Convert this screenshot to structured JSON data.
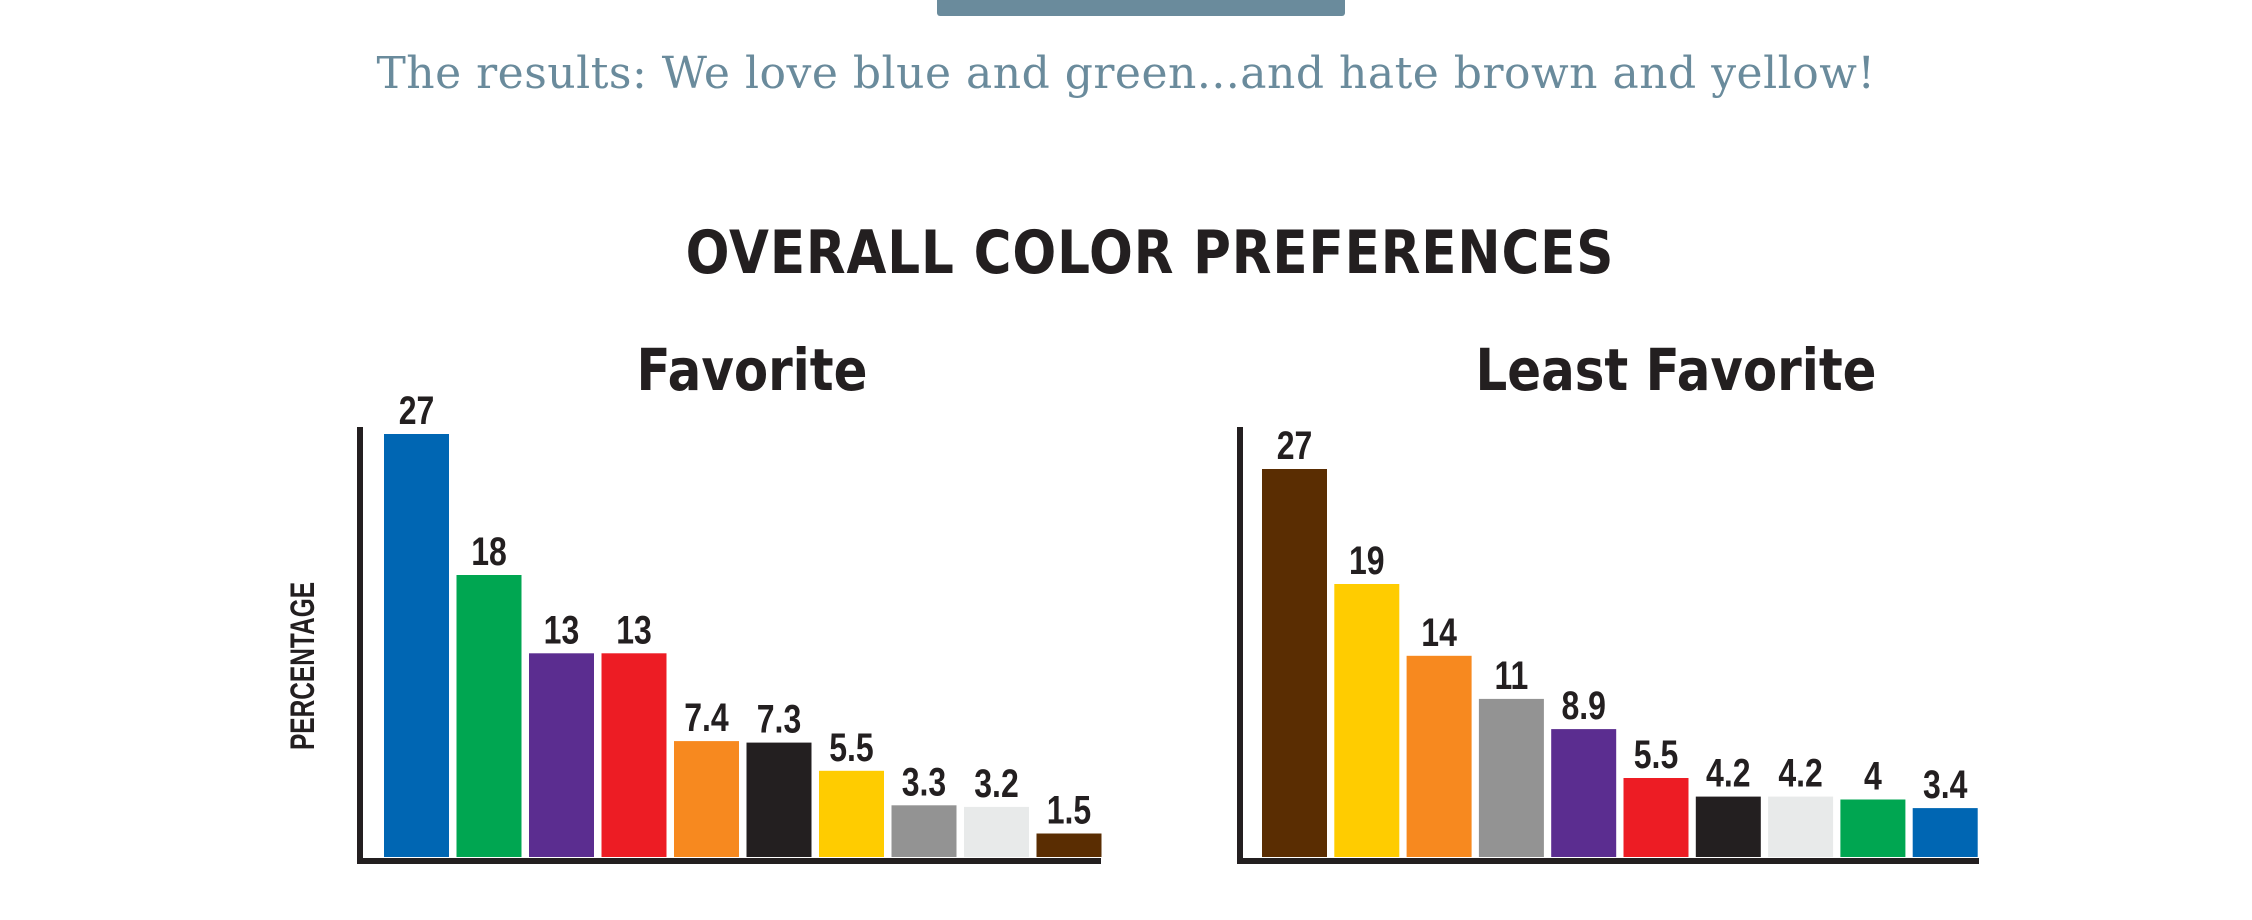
{
  "header": {
    "caption": "The results: We love blue and green...and hate brown and yellow!"
  },
  "chart_data": [
    {
      "type": "bar",
      "title": "OVERALL COLOR PREFERENCES",
      "subtitle": "Favorite",
      "xlabel": "",
      "ylabel": "PERCENTAGE",
      "ylim": [
        0,
        27
      ],
      "grid": false,
      "categories": [
        "blue",
        "green",
        "purple",
        "red",
        "orange",
        "black",
        "yellow",
        "gray",
        "white",
        "brown"
      ],
      "values": [
        27,
        18,
        13,
        13,
        7.4,
        7.3,
        5.5,
        3.3,
        3.2,
        1.5
      ],
      "value_labels": [
        "27",
        "18",
        "13",
        "13",
        "7.4",
        "7.3",
        "5.5",
        "3.3",
        "3.2",
        "1.5"
      ],
      "colors": [
        "#0066b3",
        "#00a651",
        "#5b2d90",
        "#ed1c24",
        "#f7891f",
        "#231f20",
        "#ffcc00",
        "#939393",
        "#e8eaea",
        "#5a2d02"
      ]
    },
    {
      "type": "bar",
      "subtitle": "Least Favorite",
      "xlabel": "",
      "ylabel": "",
      "ylim": [
        0,
        27
      ],
      "grid": false,
      "categories": [
        "brown",
        "yellow",
        "orange",
        "gray",
        "purple",
        "red",
        "black",
        "white",
        "green",
        "blue"
      ],
      "values": [
        27,
        19,
        14,
        11,
        8.9,
        5.5,
        4.2,
        4.2,
        4,
        3.4
      ],
      "value_labels": [
        "27",
        "19",
        "14",
        "11",
        "8.9",
        "5.5",
        "4.2",
        "4.2",
        "4",
        "3.4"
      ],
      "colors": [
        "#5a2d02",
        "#ffcc00",
        "#f7891f",
        "#939393",
        "#5b2d90",
        "#ed1c24",
        "#231f20",
        "#e8eaea",
        "#00a651",
        "#0066b3"
      ]
    }
  ]
}
